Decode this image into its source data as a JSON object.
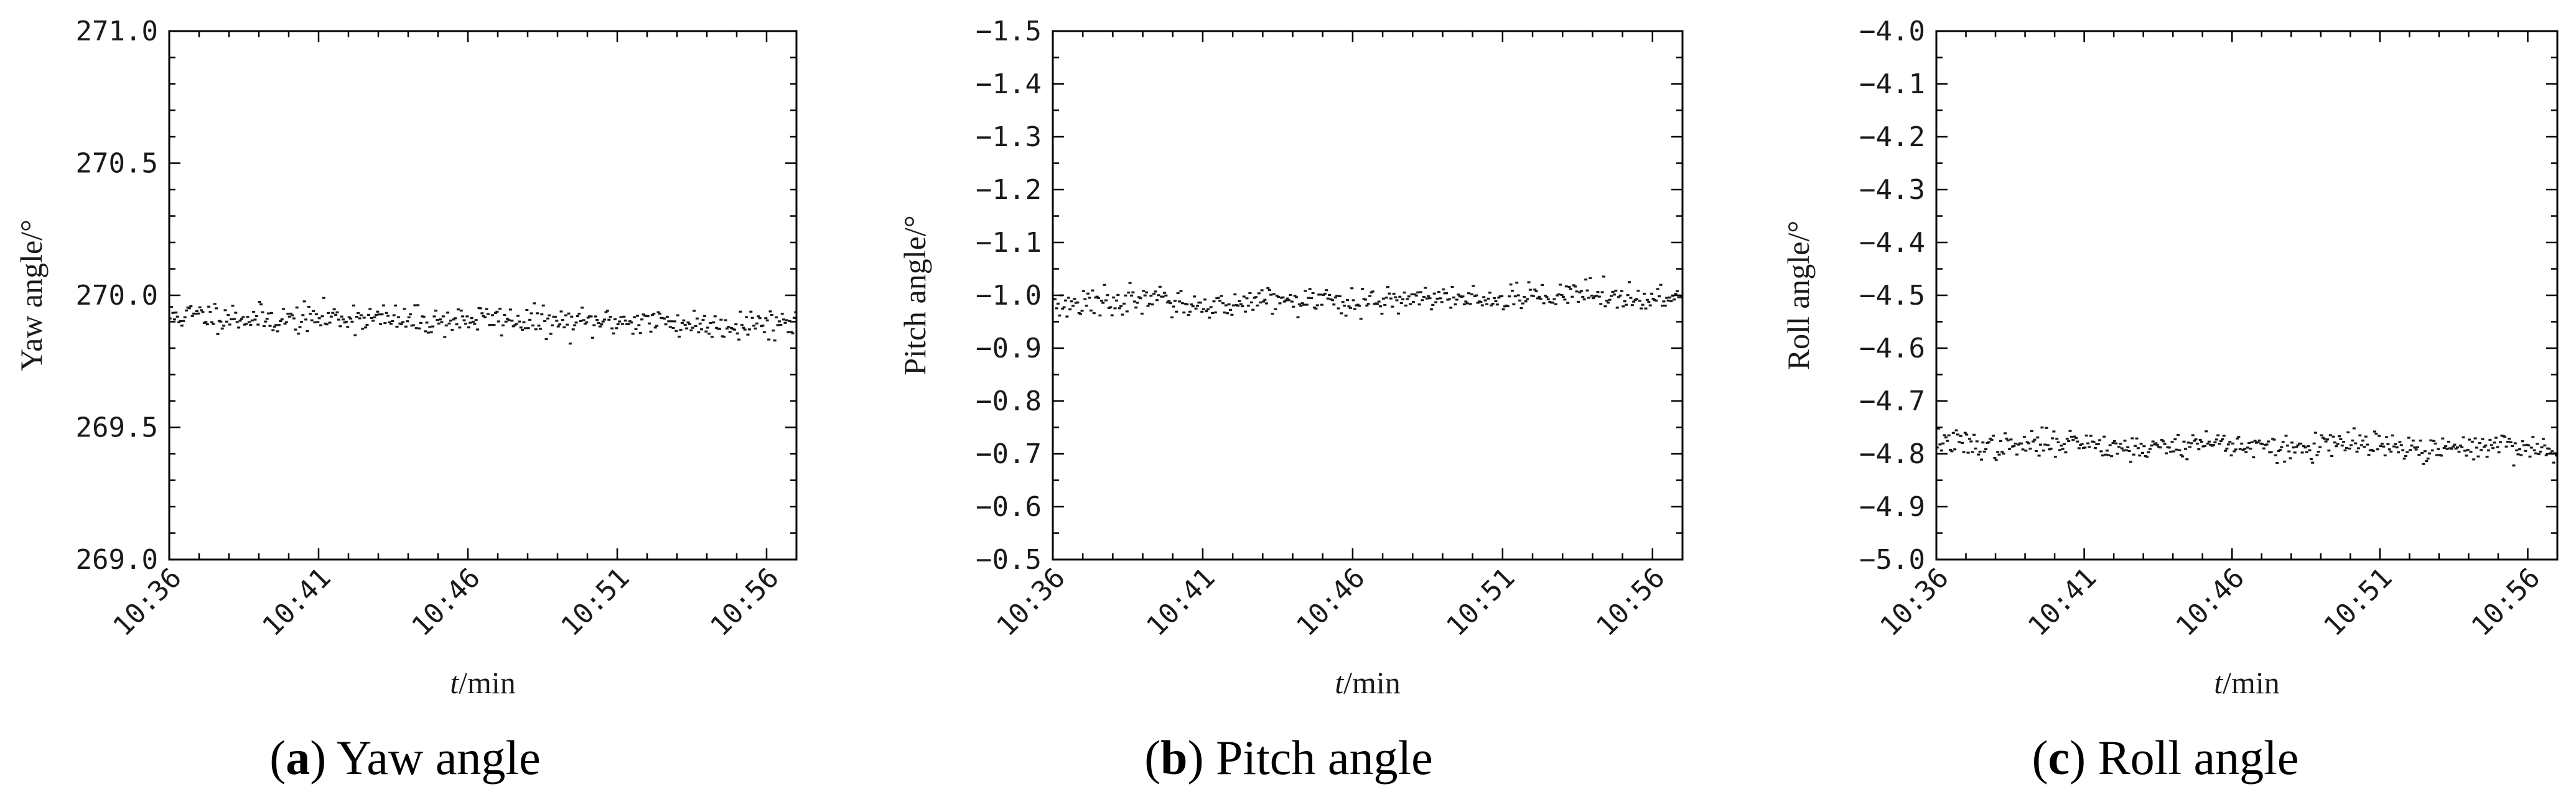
{
  "colors": {
    "marker": "#1a1a1a",
    "axis": "#000000",
    "background": "#ffffff"
  },
  "chart_data": [
    {
      "type": "scatter",
      "panel_letter": "a",
      "caption": "Yaw angle",
      "xlabel_var": "t",
      "xlabel_unit": "/min",
      "ylabel": "Yaw angle/°",
      "x_tick_labels": [
        "10:36",
        "10:41",
        "10:46",
        "10:51",
        "10:56"
      ],
      "x_tick_minutes": [
        0,
        5,
        10,
        15,
        20
      ],
      "xlim_minutes": [
        0,
        21
      ],
      "y_tick_labels": [
        "271.0",
        "270.5",
        "270.0",
        "269.5",
        "269.0"
      ],
      "y_tick_values": [
        271.0,
        270.5,
        270.0,
        269.5,
        269.0
      ],
      "ylim": [
        269.0,
        271.0
      ],
      "y_inverted": false,
      "series_mean_start": 269.92,
      "series_mean_end": 269.89,
      "series_spread": 0.05,
      "point_count": 420,
      "seed": 11
    },
    {
      "type": "scatter",
      "panel_letter": "b",
      "caption": "Pitch angle",
      "xlabel_var": "t",
      "xlabel_unit": "/min",
      "ylabel": "Pitch angle/°",
      "x_tick_labels": [
        "10:36",
        "10:41",
        "10:46",
        "10:51",
        "10:56"
      ],
      "x_tick_minutes": [
        0,
        5,
        10,
        15,
        20
      ],
      "xlim_minutes": [
        0,
        21
      ],
      "y_tick_labels": [
        "−1.5",
        "−1.4",
        "−1.3",
        "−1.2",
        "−1.1",
        "−1.0",
        "−0.9",
        "−0.8",
        "−0.7",
        "−0.6",
        "−0.5"
      ],
      "y_tick_values": [
        -1.5,
        -1.4,
        -1.3,
        -1.2,
        -1.1,
        -1.0,
        -0.9,
        -0.8,
        -0.7,
        -0.6,
        -0.5
      ],
      "ylim": [
        -1.5,
        -0.5
      ],
      "y_inverted": true,
      "series_mean_start": -0.985,
      "series_mean_end": -1.0,
      "series_spread": 0.022,
      "point_count": 420,
      "seed": 23
    },
    {
      "type": "scatter",
      "panel_letter": "c",
      "caption": "Roll angle",
      "xlabel_var": "t",
      "xlabel_unit": "/min",
      "ylabel": "Roll angle/°",
      "x_tick_labels": [
        "10:36",
        "10:41",
        "10:46",
        "10:51",
        "10:56"
      ],
      "x_tick_minutes": [
        0,
        5,
        10,
        15,
        20
      ],
      "xlim_minutes": [
        0,
        21
      ],
      "y_tick_labels": [
        "−4.0",
        "−4.1",
        "−4.2",
        "−4.3",
        "−4.4",
        "−4.5",
        "−4.6",
        "−4.7",
        "−4.8",
        "−4.9",
        "−5.0"
      ],
      "y_tick_values": [
        -4.0,
        -4.1,
        -4.2,
        -4.3,
        -4.4,
        -4.5,
        -4.6,
        -4.7,
        -4.8,
        -4.9,
        -5.0
      ],
      "ylim": [
        -5.0,
        -4.0
      ],
      "y_inverted": false,
      "series_mean_start": -4.78,
      "series_mean_end": -4.79,
      "series_spread": 0.022,
      "point_count": 420,
      "seed": 37
    }
  ]
}
